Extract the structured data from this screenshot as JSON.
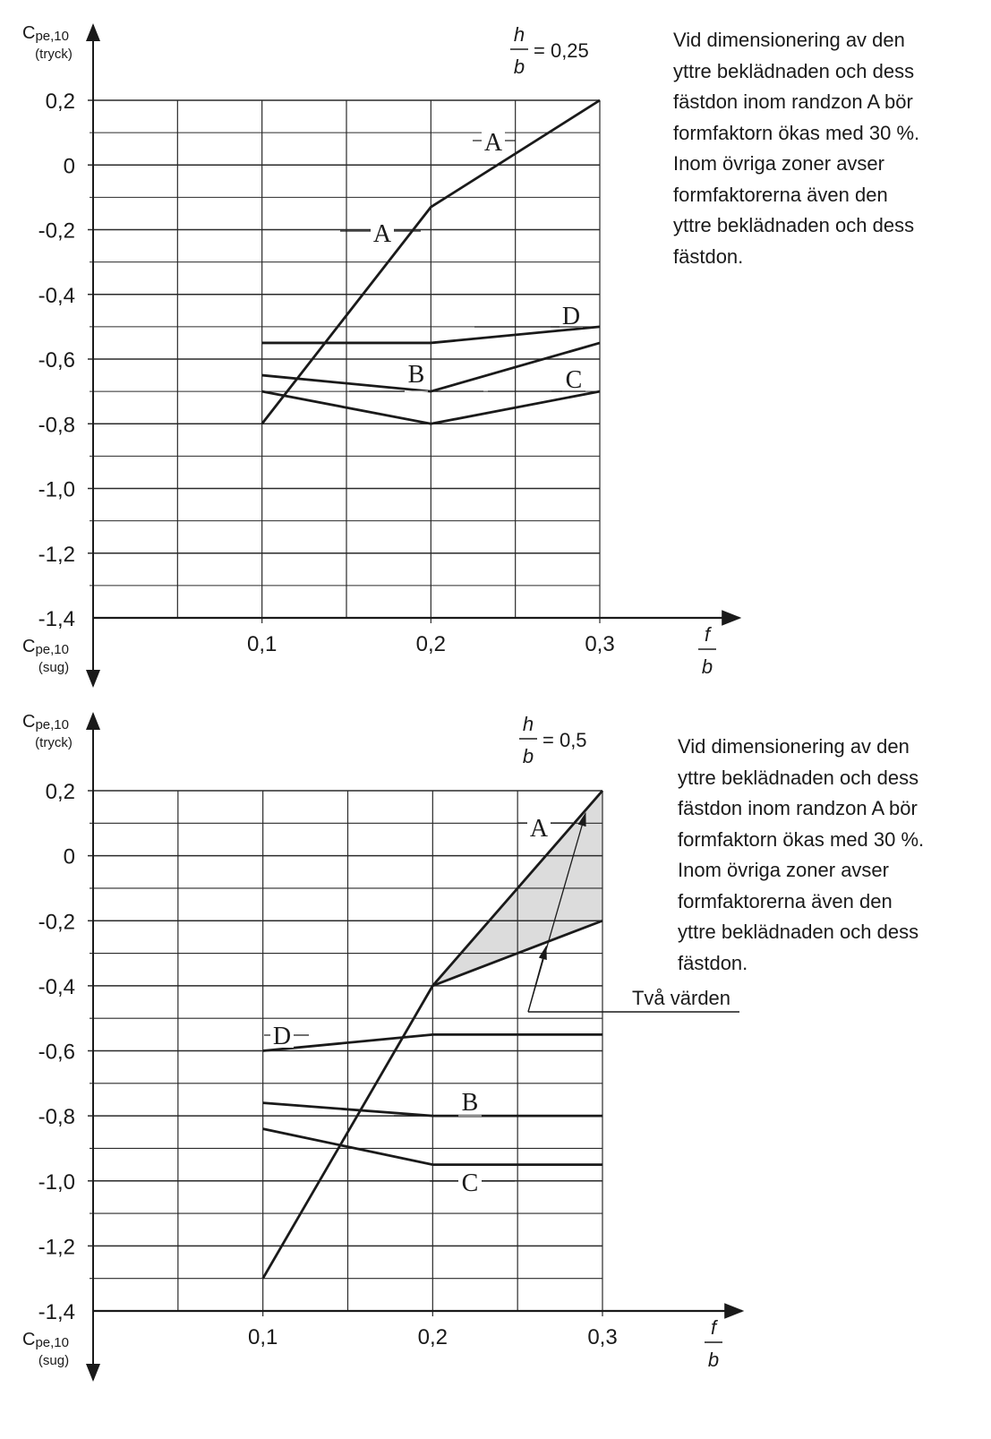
{
  "charts": [
    {
      "ratio": {
        "num": "h",
        "den": "b",
        "value": "= 0,25"
      },
      "ylabel_top": {
        "main": "C",
        "sub": "pe,10",
        "paren": "(tryck)"
      },
      "ylabel_bottom": {
        "main": "C",
        "sub": "pe,10",
        "paren": "(sug)"
      },
      "xlabel": {
        "num": "f",
        "den": "b"
      },
      "note_lines": [
        "Vid dimensionering av den",
        "yttre beklädnaden och dess",
        "fästdon inom randzon A bör",
        "formfaktorn ökas med 30 %.",
        "Inom övriga zoner avser",
        "formfaktorerna även den",
        "yttre beklädnaden och dess",
        "fästdon."
      ]
    },
    {
      "ratio": {
        "num": "h",
        "den": "b",
        "value": "= 0,5"
      },
      "ylabel_top": {
        "main": "C",
        "sub": "pe,10",
        "paren": "(tryck)"
      },
      "ylabel_bottom": {
        "main": "C",
        "sub": "pe,10",
        "paren": "(sug)"
      },
      "xlabel": {
        "num": "f",
        "den": "b"
      },
      "note_lines": [
        "Vid dimensionering av den",
        "yttre beklädnaden och dess",
        "fästdon inom randzon A bör",
        "formfaktorn ökas med 30 %.",
        "Inom övriga zoner avser",
        "formfaktorerna även den",
        "yttre beklädnaden och dess",
        "fästdon."
      ],
      "annotation": "Två värden"
    }
  ],
  "chart_data": [
    {
      "type": "line",
      "xlim": [
        0,
        0.3
      ],
      "ylim": [
        -1.4,
        0.2
      ],
      "x_ticks": [
        0.1,
        0.2,
        0.3
      ],
      "x_tick_labels": [
        "0,1",
        "0,2",
        "0,3"
      ],
      "y_ticks": [
        0.2,
        0,
        -0.2,
        -0.4,
        -0.6,
        -0.8,
        -1.0,
        -1.2,
        -1.4
      ],
      "y_tick_labels": [
        "0,2",
        "0",
        "-0,2",
        "-0,4",
        "-0,6",
        "-0,8",
        "-1,0",
        "-1,2",
        "-1,4"
      ],
      "grid": true,
      "series": [
        {
          "name": "A",
          "x": [
            0.1,
            0.2,
            0.3
          ],
          "y": [
            -0.8,
            -0.13,
            0.2
          ]
        },
        {
          "name": "D",
          "x": [
            0.1,
            0.2,
            0.3
          ],
          "y": [
            -0.55,
            -0.55,
            -0.5
          ]
        },
        {
          "name": "B",
          "x": [
            0.1,
            0.2,
            0.3
          ],
          "y": [
            -0.65,
            -0.7,
            -0.55
          ]
        },
        {
          "name": "C",
          "x": [
            0.1,
            0.2,
            0.3
          ],
          "y": [
            -0.7,
            -0.8,
            -0.7
          ]
        }
      ]
    },
    {
      "type": "line",
      "xlim": [
        0,
        0.3
      ],
      "ylim": [
        -1.4,
        0.2
      ],
      "x_ticks": [
        0.1,
        0.2,
        0.3
      ],
      "x_tick_labels": [
        "0,1",
        "0,2",
        "0,3"
      ],
      "y_ticks": [
        0.2,
        0,
        -0.2,
        -0.4,
        -0.6,
        -0.8,
        -1.0,
        -1.2,
        -1.4
      ],
      "y_tick_labels": [
        "0,2",
        "0",
        "-0,2",
        "-0,4",
        "-0,6",
        "-0,8",
        "-1,0",
        "-1,2",
        "-1,4"
      ],
      "grid": true,
      "shaded_region": {
        "x": [
          0.2,
          0.3,
          0.3
        ],
        "y": [
          -0.4,
          0.2,
          -0.2
        ],
        "color": "#dcdcdc"
      },
      "series": [
        {
          "name": "A",
          "x": [
            0.1,
            0.2,
            0.3
          ],
          "y": [
            -1.3,
            -0.4,
            0.2
          ]
        },
        {
          "name": "A",
          "x": [
            0.2,
            0.3
          ],
          "y": [
            -0.4,
            -0.2
          ]
        },
        {
          "name": "D",
          "x": [
            0.1,
            0.2,
            0.3
          ],
          "y": [
            -0.6,
            -0.55,
            -0.55
          ]
        },
        {
          "name": "B",
          "x": [
            0.1,
            0.2,
            0.3
          ],
          "y": [
            -0.76,
            -0.8,
            -0.8
          ]
        },
        {
          "name": "C",
          "x": [
            0.1,
            0.2,
            0.3
          ],
          "y": [
            -0.84,
            -0.95,
            -0.95
          ]
        }
      ]
    }
  ]
}
